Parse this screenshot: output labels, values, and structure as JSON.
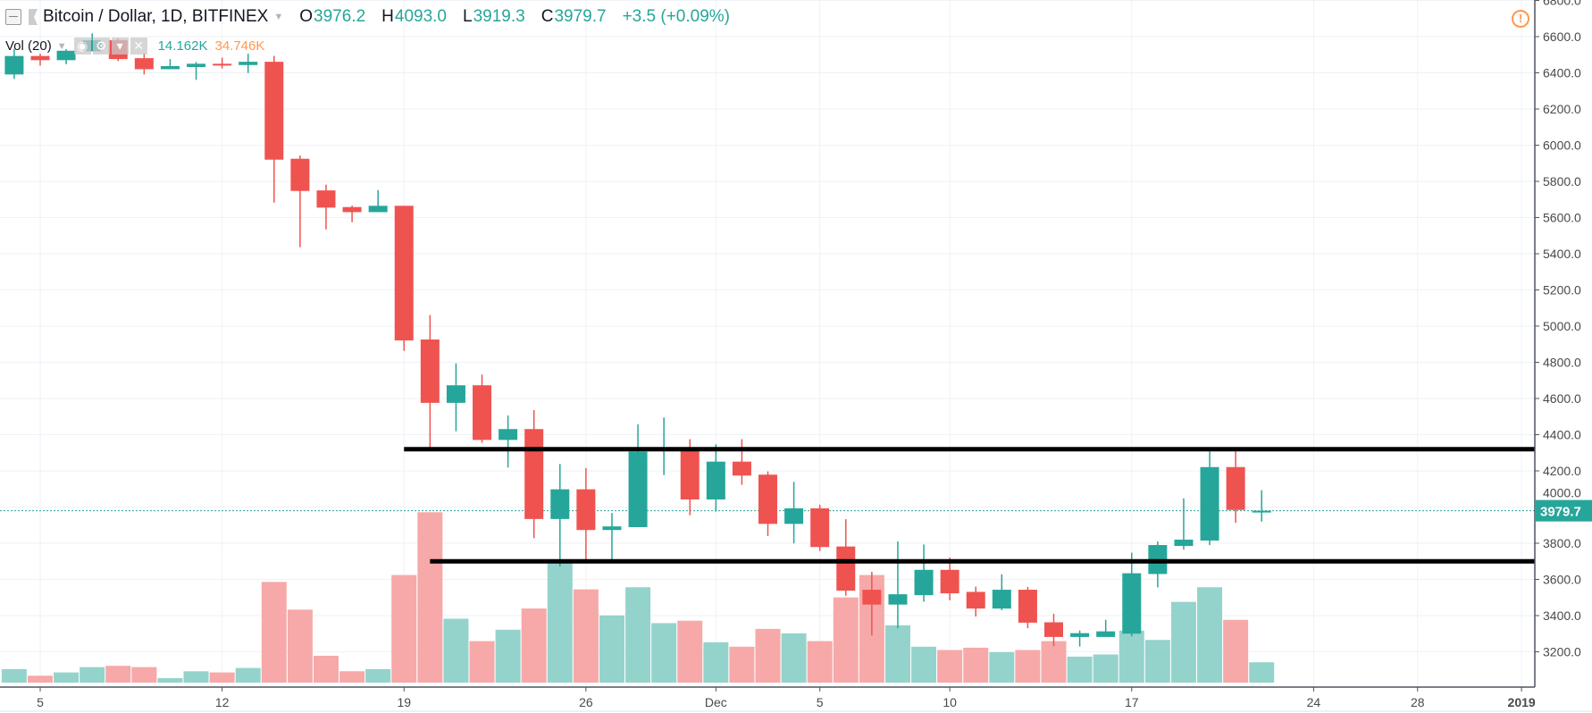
{
  "header": {
    "symbol_title": "Bitcoin / Dollar, 1D, BITFINEX",
    "open_label": "O",
    "open": "3976.2",
    "high_label": "H",
    "high": "4093.0",
    "low_label": "L",
    "low": "3919.3",
    "close_label": "C",
    "close": "3979.7",
    "change": "+3.5 (+0.09%)"
  },
  "volume_legend": {
    "label": "Vol (20)",
    "value": "14.162K",
    "ma_value": "34.746K"
  },
  "alert_icon": "!",
  "colors": {
    "up": "#26a69a",
    "down": "#ef5350",
    "up_vol": "#94d3cc",
    "down_vol": "#f6a9a8",
    "grid": "#eef2f6",
    "ma": "#ff9850"
  },
  "chart_data": {
    "type": "candlestick",
    "title": "Bitcoin / Dollar, 1D, BITFINEX",
    "ylim": [
      3050,
      6800
    ],
    "yticks": [
      "6800.0",
      "6600.0",
      "6400.0",
      "6200.0",
      "6000.0",
      "5800.0",
      "5600.0",
      "5400.0",
      "5200.0",
      "5000.0",
      "4800.0",
      "4600.0",
      "4400.0",
      "4200.0",
      "4000.0",
      "3800.0",
      "3600.0",
      "3400.0",
      "3200.0"
    ],
    "last_price_label": "3979.7",
    "last_price": 3979.7,
    "xtick_labels": [
      {
        "label": "5",
        "day": 1
      },
      {
        "label": "12",
        "day": 8
      },
      {
        "label": "19",
        "day": 15
      },
      {
        "label": "26",
        "day": 22
      },
      {
        "label": "Dec",
        "day": 27
      },
      {
        "label": "5",
        "day": 31
      },
      {
        "label": "10",
        "day": 36
      },
      {
        "label": "17",
        "day": 43
      },
      {
        "label": "24",
        "day": 50
      },
      {
        "label": "28",
        "day": 54
      },
      {
        "label": "2019",
        "day": 58,
        "bold": true
      }
    ],
    "candles": [
      [
        6391,
        6531,
        6366,
        6493,
        9.4
      ],
      [
        6493,
        6506,
        6440,
        6470,
        4.8
      ],
      [
        6470,
        6531,
        6448,
        6522,
        7.1
      ],
      [
        6519,
        6618,
        6519,
        6580,
        10.8
      ],
      [
        6580,
        6591,
        6465,
        6476,
        11.7
      ],
      [
        6481,
        6509,
        6391,
        6420,
        10.8
      ],
      [
        6420,
        6476,
        6420,
        6437,
        3.1
      ],
      [
        6432,
        6460,
        6361,
        6450,
        7.9
      ],
      [
        6450,
        6484,
        6424,
        6443,
        7.1
      ],
      [
        6443,
        6506,
        6399,
        6461,
        10.2
      ],
      [
        6461,
        6494,
        5683,
        5920,
        70.1
      ],
      [
        5925,
        5943,
        5436,
        5747,
        50.8
      ],
      [
        5750,
        5782,
        5535,
        5655,
        18.7
      ],
      [
        5658,
        5666,
        5574,
        5630,
        7.9
      ],
      [
        5630,
        5752,
        5630,
        5665,
        9.4
      ],
      [
        5665,
        5665,
        4863,
        4921,
        74.9
      ],
      [
        4926,
        5061,
        4325,
        4576,
        118.6
      ],
      [
        4576,
        4794,
        4419,
        4673,
        44.5
      ],
      [
        4673,
        4732,
        4355,
        4371,
        28.9
      ],
      [
        4371,
        4506,
        4218,
        4431,
        36.8
      ],
      [
        4431,
        4536,
        3828,
        3934,
        51.6
      ],
      [
        3934,
        4238,
        3672,
        4098,
        83.0
      ],
      [
        4098,
        4215,
        3700,
        3873,
        64.9
      ],
      [
        3873,
        3967,
        3708,
        3893,
        46.8
      ],
      [
        3889,
        4457,
        3889,
        4306,
        66.4
      ],
      [
        4310,
        4495,
        4177,
        4330,
        41.4
      ],
      [
        4330,
        4375,
        3955,
        4042,
        43.1
      ],
      [
        4042,
        4347,
        3975,
        4251,
        28.1
      ],
      [
        4251,
        4375,
        4123,
        4174,
        25.0
      ],
      [
        4179,
        4197,
        3840,
        3907,
        37.4
      ],
      [
        3907,
        4139,
        3799,
        3993,
        34.3
      ],
      [
        3993,
        4013,
        3757,
        3779,
        28.9
      ],
      [
        3782,
        3933,
        3510,
        3538,
        59.3
      ],
      [
        3543,
        3642,
        3290,
        3461,
        74.9
      ],
      [
        3461,
        3810,
        3330,
        3518,
        39.9
      ],
      [
        3513,
        3793,
        3477,
        3653,
        25.0
      ],
      [
        3653,
        3721,
        3485,
        3523,
        22.7
      ],
      [
        3531,
        3560,
        3395,
        3439,
        24.3
      ],
      [
        3439,
        3629,
        3430,
        3543,
        21.2
      ],
      [
        3543,
        3558,
        3330,
        3361,
        22.7
      ],
      [
        3363,
        3410,
        3232,
        3282,
        28.9
      ],
      [
        3282,
        3318,
        3229,
        3303,
        18.1
      ],
      [
        3282,
        3377,
        3282,
        3313,
        19.6
      ],
      [
        3300,
        3748,
        3285,
        3634,
        36.2
      ],
      [
        3630,
        3810,
        3556,
        3790,
        29.7
      ],
      [
        3785,
        4048,
        3765,
        3820,
        56.2
      ],
      [
        3815,
        4308,
        3790,
        4221,
        66.4
      ],
      [
        4221,
        4308,
        3913,
        3984,
        43.7
      ],
      [
        3976.2,
        4093.0,
        3919.3,
        3979.7,
        14.162
      ]
    ],
    "candle_fields": [
      "open",
      "high",
      "low",
      "close",
      "volume_k"
    ],
    "drawings": [
      {
        "type": "horizontal-segment",
        "price": 4320,
        "from_day": 15,
        "to_day": 58.7
      },
      {
        "type": "horizontal-segment",
        "price": 3700,
        "from_day": 16,
        "to_day": 58.6
      }
    ]
  }
}
